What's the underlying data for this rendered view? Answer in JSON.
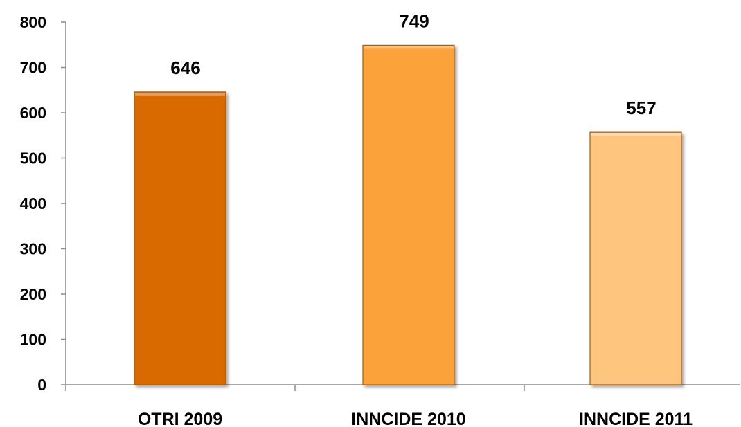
{
  "chart_data": {
    "type": "bar",
    "categories": [
      "OTRI 2009",
      "INNCIDE 2010",
      "INNCIDE 2011"
    ],
    "values": [
      646,
      749,
      557
    ],
    "data_labels": [
      "646",
      "749",
      "557"
    ],
    "bar_colors": [
      "#d96b06",
      "#fba23b",
      "#fdc57e"
    ],
    "title": "",
    "xlabel": "",
    "ylabel": "",
    "ylim": [
      0,
      800
    ],
    "yticks": [
      0,
      100,
      200,
      300,
      400,
      500,
      600,
      700,
      800
    ],
    "ytick_labels": [
      "0",
      "100",
      "200",
      "300",
      "400",
      "500",
      "600",
      "700",
      "800"
    ],
    "grid": false,
    "legend": "none"
  }
}
